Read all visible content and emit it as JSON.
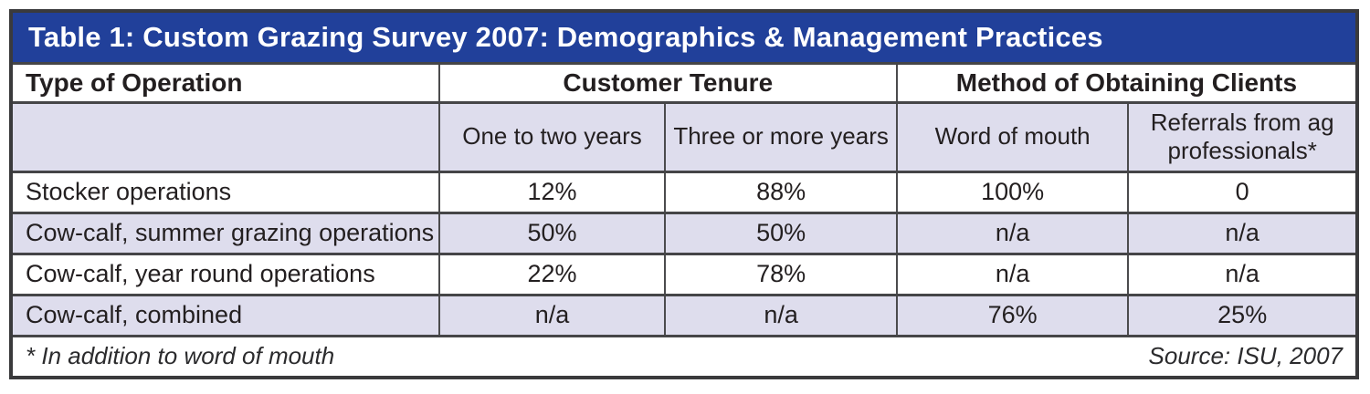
{
  "table": {
    "title": "Table 1: Custom Grazing Survey 2007: Demographics & Management Practices",
    "colors": {
      "title_bar_bg": "#21409a",
      "title_text": "#ffffff",
      "band_row_bg": "#dedded",
      "border_dark": "#3a3a3c",
      "grid_line": "#4b4b4d",
      "body_text": "#231f20"
    },
    "header": {
      "col1": "Type of Operation",
      "group1": "Customer Tenure",
      "group2": "Method of Obtaining Clients"
    },
    "subheaders": [
      "One to two years",
      "Three or more years",
      "Word of mouth",
      "Referrals from ag professionals*"
    ],
    "rows": [
      {
        "label": "Stocker operations",
        "values": [
          "12%",
          "88%",
          "100%",
          "0"
        ]
      },
      {
        "label": "Cow-calf, summer grazing operations",
        "values": [
          "50%",
          "50%",
          "n/a",
          "n/a"
        ]
      },
      {
        "label": "Cow-calf, year round operations",
        "values": [
          "22%",
          "78%",
          "n/a",
          "n/a"
        ]
      },
      {
        "label": "Cow-calf, combined",
        "values": [
          "n/a",
          "n/a",
          "76%",
          "25%"
        ]
      }
    ],
    "footnote": "* In addition to word of mouth",
    "source": "Source: ISU, 2007"
  }
}
